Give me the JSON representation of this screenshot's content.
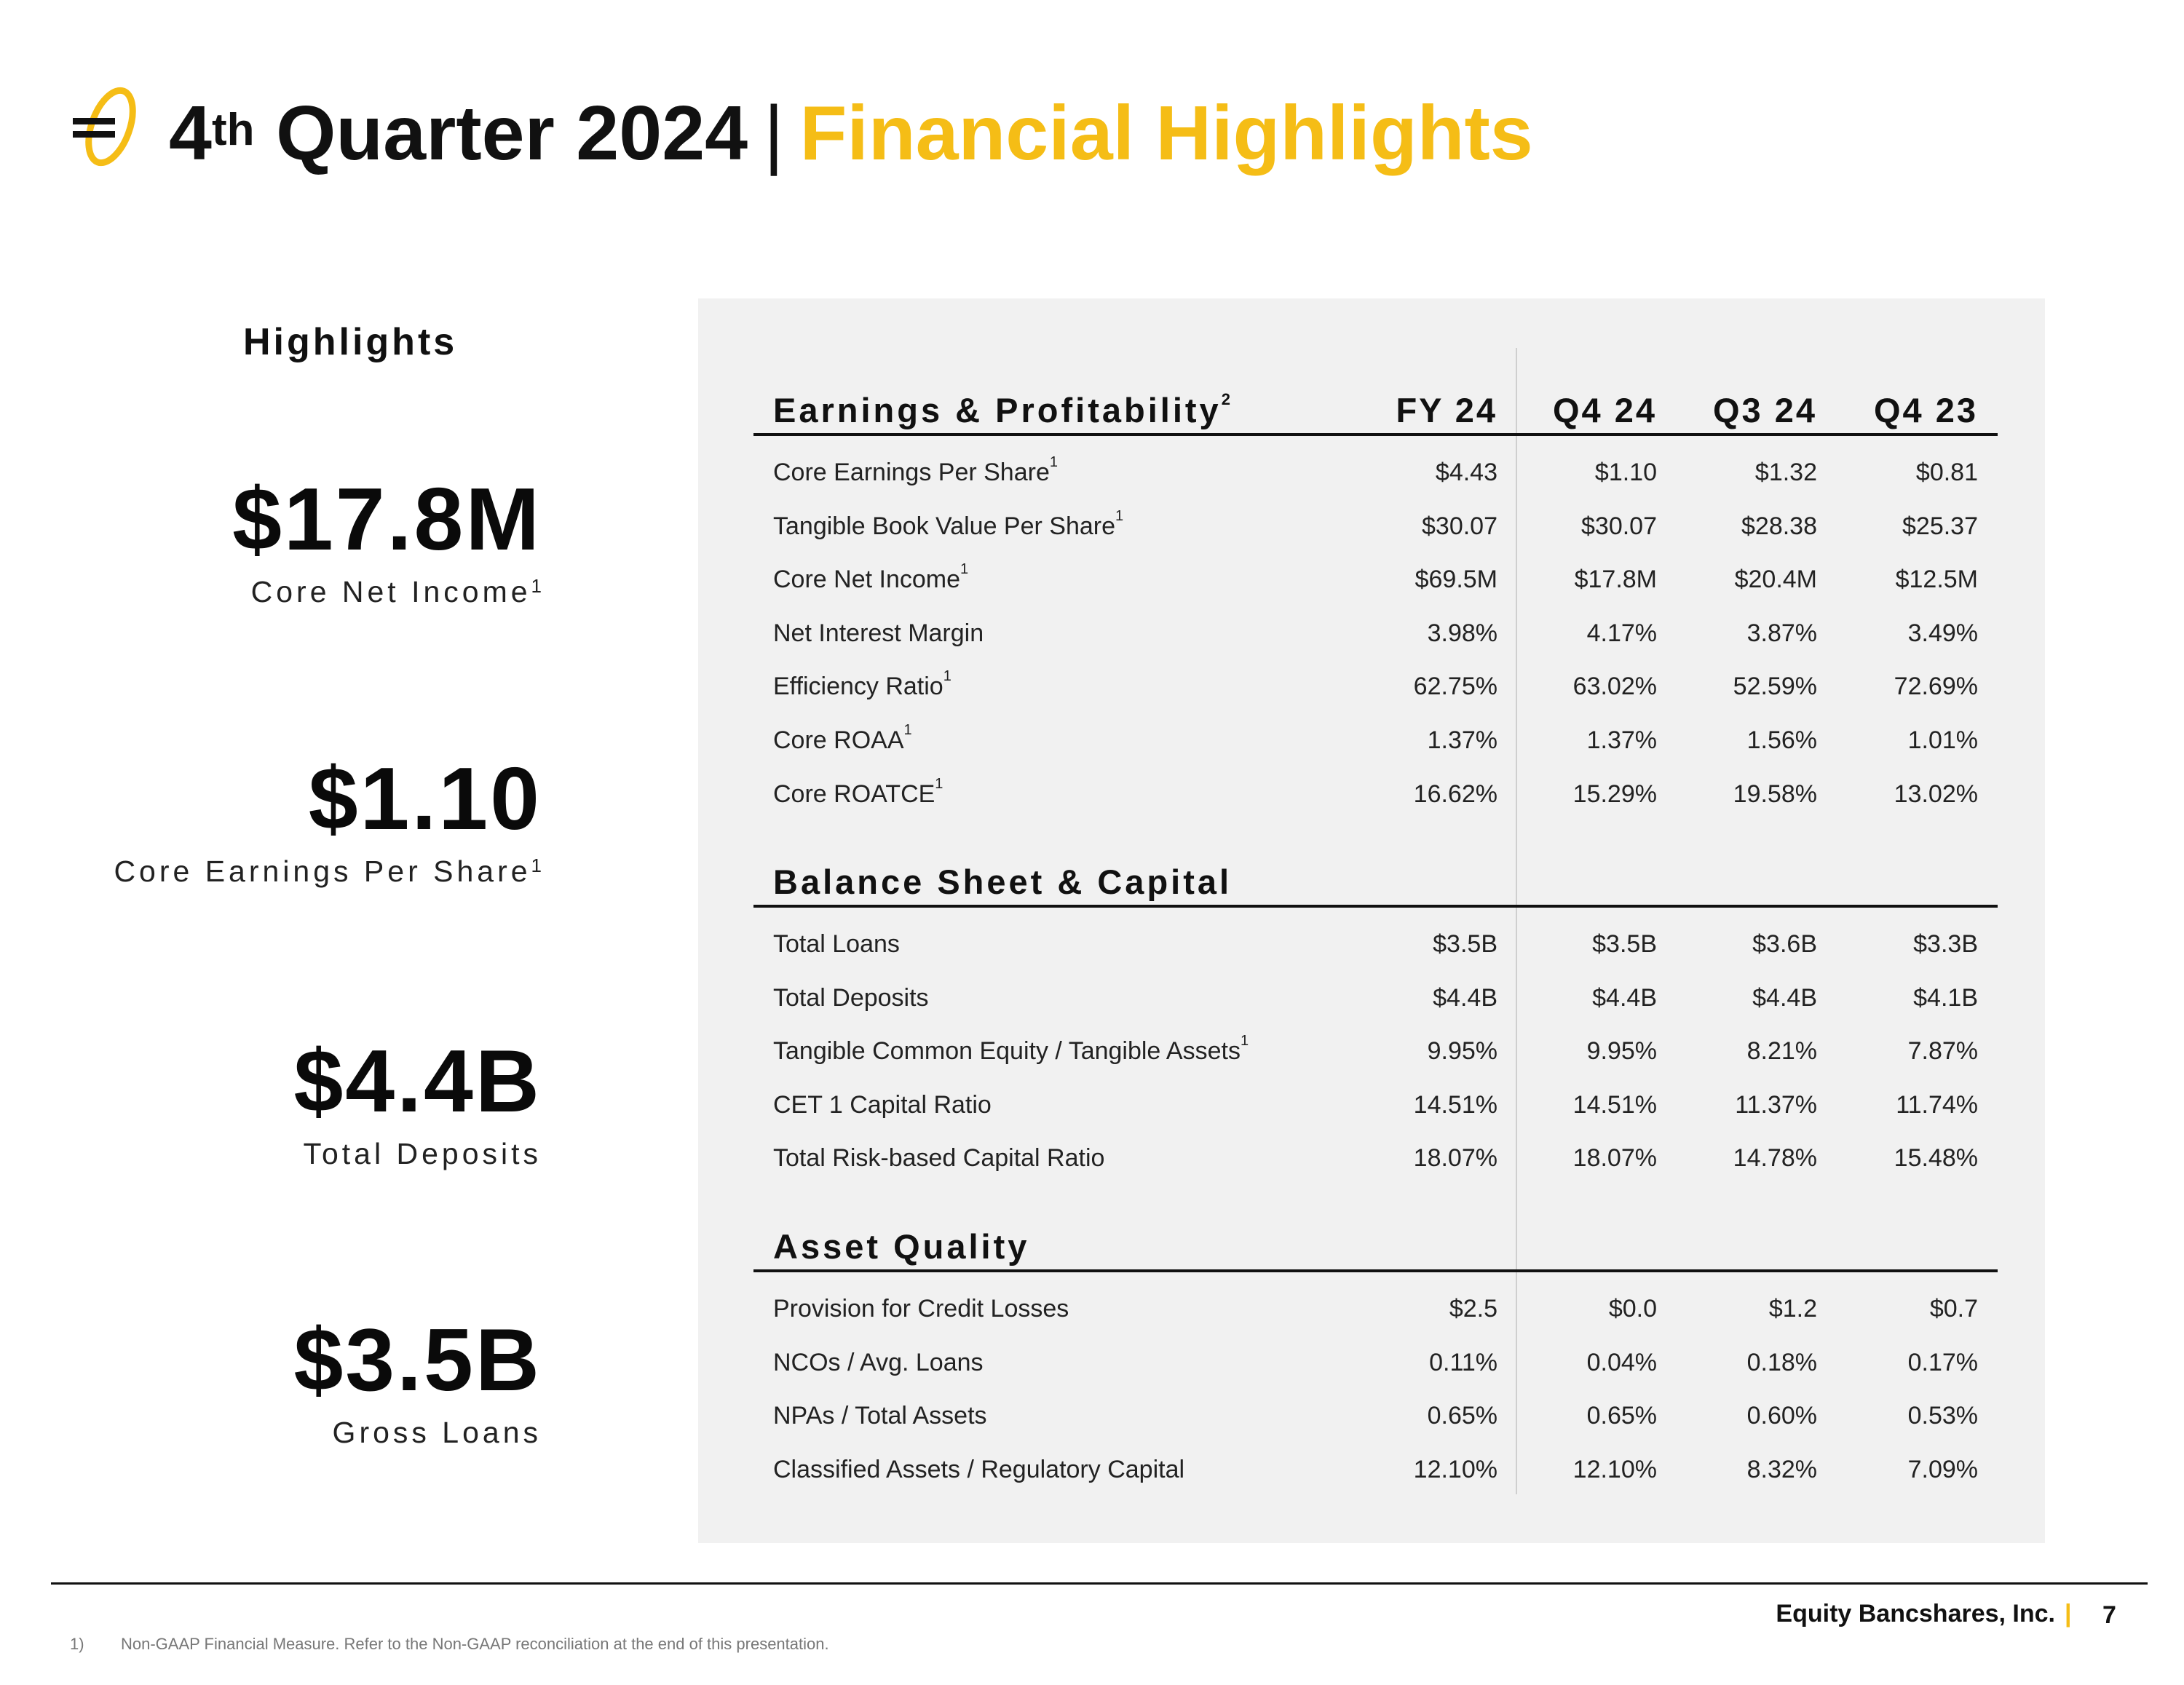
{
  "header": {
    "title_part1": "4",
    "title_superscript": "th",
    "title_part2": "Quarter 2024",
    "separator": "|",
    "title_accent": "Financial Highlights",
    "accent_color": "#F5BD16"
  },
  "highlights": {
    "heading": "Highlights",
    "items": [
      {
        "value": "$17.8M",
        "label": "Core Net Income",
        "note": "1"
      },
      {
        "value": "$1.10",
        "label": "Core Earnings Per Share",
        "note": "1"
      },
      {
        "value": "$4.4B",
        "label": "Total Deposits",
        "note": ""
      },
      {
        "value": "$3.5B",
        "label": "Gross Loans",
        "note": ""
      }
    ]
  },
  "table": {
    "columns": [
      "FY 24",
      "Q4 24",
      "Q3 24",
      "Q4 23"
    ],
    "sections": [
      {
        "title": "Earnings & Profitability",
        "title_note": "2",
        "rows": [
          {
            "name": "Core Earnings Per Share",
            "note": "1",
            "values": [
              "$4.43",
              "$1.10",
              "$1.32",
              "$0.81"
            ]
          },
          {
            "name": "Tangible Book Value Per Share",
            "note": "1",
            "values": [
              "$30.07",
              "$30.07",
              "$28.38",
              "$25.37"
            ]
          },
          {
            "name": "Core Net Income",
            "note": "1",
            "values": [
              "$69.5M",
              "$17.8M",
              "$20.4M",
              "$12.5M"
            ]
          },
          {
            "name": "Net Interest Margin",
            "note": "",
            "values": [
              "3.98%",
              "4.17%",
              "3.87%",
              "3.49%"
            ]
          },
          {
            "name": "Efficiency Ratio",
            "note": "1",
            "values": [
              "62.75%",
              "63.02%",
              "52.59%",
              "72.69%"
            ]
          },
          {
            "name": "Core ROAA",
            "note": "1",
            "values": [
              "1.37%",
              "1.37%",
              "1.56%",
              "1.01%"
            ]
          },
          {
            "name": "Core ROATCE",
            "note": "1",
            "values": [
              "16.62%",
              "15.29%",
              "19.58%",
              "13.02%"
            ]
          }
        ]
      },
      {
        "title": "Balance Sheet & Capital",
        "title_note": "",
        "rows": [
          {
            "name": "Total Loans",
            "note": "",
            "values": [
              "$3.5B",
              "$3.5B",
              "$3.6B",
              "$3.3B"
            ]
          },
          {
            "name": "Total Deposits",
            "note": "",
            "values": [
              "$4.4B",
              "$4.4B",
              "$4.4B",
              "$4.1B"
            ]
          },
          {
            "name": "Tangible Common Equity / Tangible Assets",
            "note": "1",
            "values": [
              "9.95%",
              "9.95%",
              "8.21%",
              "7.87%"
            ]
          },
          {
            "name": "CET 1 Capital Ratio",
            "note": "",
            "values": [
              "14.51%",
              "14.51%",
              "11.37%",
              "11.74%"
            ]
          },
          {
            "name": "Total Risk-based Capital Ratio",
            "note": "",
            "values": [
              "18.07%",
              "18.07%",
              "14.78%",
              "15.48%"
            ]
          }
        ]
      },
      {
        "title": "Asset Quality",
        "title_note": "",
        "rows": [
          {
            "name": "Provision for Credit Losses",
            "note": "",
            "values": [
              "$2.5",
              "$0.0",
              "$1.2",
              "$0.7"
            ]
          },
          {
            "name": "NCOs / Avg. Loans",
            "note": "",
            "values": [
              "0.11%",
              "0.04%",
              "0.18%",
              "0.17%"
            ]
          },
          {
            "name": "NPAs / Total Assets",
            "note": "",
            "values": [
              "0.65%",
              "0.65%",
              "0.60%",
              "0.53%"
            ]
          },
          {
            "name": "Classified Assets / Regulatory Capital",
            "note": "",
            "values": [
              "12.10%",
              "12.10%",
              "8.32%",
              "7.09%"
            ]
          }
        ]
      }
    ]
  },
  "footer": {
    "company": "Equity Bancshares, Inc.",
    "bar": "|",
    "page": "7",
    "footnote_num": "1)",
    "footnote_text": "Non-GAAP Financial Measure. Refer to the Non-GAAP reconciliation at the end of this presentation."
  }
}
